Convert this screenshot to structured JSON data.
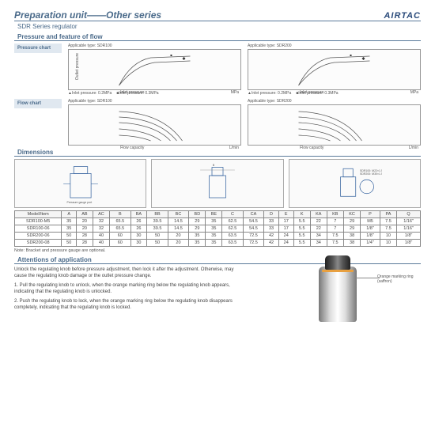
{
  "header": {
    "title": "Preparation unit——Other series",
    "brand": "AIRTAC"
  },
  "subtitle": "SDR Series regulator",
  "sections": {
    "pressure_flow": "Pressure and feature of flow",
    "dimensions": "Dimensions",
    "attentions": "Attentions of application"
  },
  "sidelabels": {
    "pressure": "Pressure chart",
    "flow": "Flow chart"
  },
  "charts": {
    "pressure": [
      {
        "applicable": "Applicable type: SDR100",
        "ylabel": "Outlet pressure",
        "yunit": "MPa",
        "xlabel": "Inlet pressure",
        "xunit": "MPa",
        "xticks": "0.10 0.20 0.30 0.40 0.50 0.60 0.70",
        "curve_color": "#555"
      },
      {
        "applicable": "Applicable type: SDR200",
        "ylabel": "Outlet pressure",
        "yunit": "MPa",
        "xlabel": "Inlet pressure",
        "xunit": "MPa",
        "xticks": "0.10 0.20 0.30 0.40 0.50 0.60 0.70",
        "curve_color": "#555"
      }
    ],
    "flow": [
      {
        "applicable": "Applicable type: SDR100",
        "ylabel": "Outlet pressure",
        "yunit": "MPa",
        "xlabel": "Flow capacity",
        "xunit": "L/min",
        "xticks": "100 200 300 400 500 600 700",
        "curve_color": "#555"
      },
      {
        "applicable": "Applicable type: SDR200",
        "ylabel": "Outlet pressure",
        "yunit": "MPa",
        "xlabel": "Flow capacity",
        "xunit": "L/min",
        "xticks": "200 400 600 800 1000 1200",
        "curve_color": "#555"
      }
    ],
    "legend": {
      "a": "▲Inlet pressure: 0.2MPa",
      "b": "■Inlet pressure: 0.3MPa"
    }
  },
  "dim_labels": {
    "thread1": "SDR100: M22×1.5",
    "thread2": "SDR200: M30×1.5",
    "gauge": "Pressure gauge port"
  },
  "table": {
    "columns": [
      "Model/Item",
      "A",
      "AB",
      "AC",
      "B",
      "BA",
      "BB",
      "BC",
      "BD",
      "BE",
      "C",
      "CA",
      "D",
      "E",
      "K",
      "KA",
      "KB",
      "KC",
      "P",
      "PA",
      "Q"
    ],
    "rows": [
      [
        "SDR100-M5",
        "35",
        "20",
        "32",
        "65.5",
        "26",
        "39.5",
        "14.5",
        "29",
        "35",
        "62.5",
        "54.5",
        "33",
        "17",
        "5.5",
        "22",
        "7",
        "29",
        "M5",
        "7.5",
        "1/16\""
      ],
      [
        "SDR100-06",
        "35",
        "20",
        "32",
        "65.5",
        "26",
        "39.5",
        "14.5",
        "29",
        "35",
        "62.5",
        "54.5",
        "33",
        "17",
        "5.5",
        "22",
        "7",
        "29",
        "1/8\"",
        "7.5",
        "1/16\""
      ],
      [
        "SDR200-06",
        "50",
        "28",
        "40",
        "60",
        "30",
        "50",
        "20",
        "35",
        "35",
        "63.5",
        "72.5",
        "42",
        "24",
        "5.5",
        "34",
        "7.5",
        "38",
        "1/8\"",
        "10",
        "1/8\""
      ],
      [
        "SDR200-08",
        "50",
        "28",
        "40",
        "60",
        "30",
        "50",
        "20",
        "35",
        "35",
        "63.5",
        "72.5",
        "42",
        "24",
        "5.5",
        "34",
        "7.5",
        "38",
        "1/4\"",
        "10",
        "1/8\""
      ]
    ]
  },
  "note": "Note: Bracket and pressure gauge are optional.",
  "attentions": {
    "intro": "Unlock the regulating knob before pressure adjustment, then lock it after the adjustment. Otherwise, may cause the regulating knob damage or the outlet pressure change.",
    "p1": "1. Pull the regulating knob to unlock, when the orange marking ring below the regulating knob appears, indicating that the regulating knob is unlocked.",
    "p2": "2. Push the regulating knob to lock, when the orange marking ring below the regulating knob disappears completely, indicating that the regulating knob is locked.",
    "callout": "Orange marking ring (saffron)"
  },
  "colors": {
    "accent": "#4a6a8a",
    "ring": "#e8a040"
  }
}
